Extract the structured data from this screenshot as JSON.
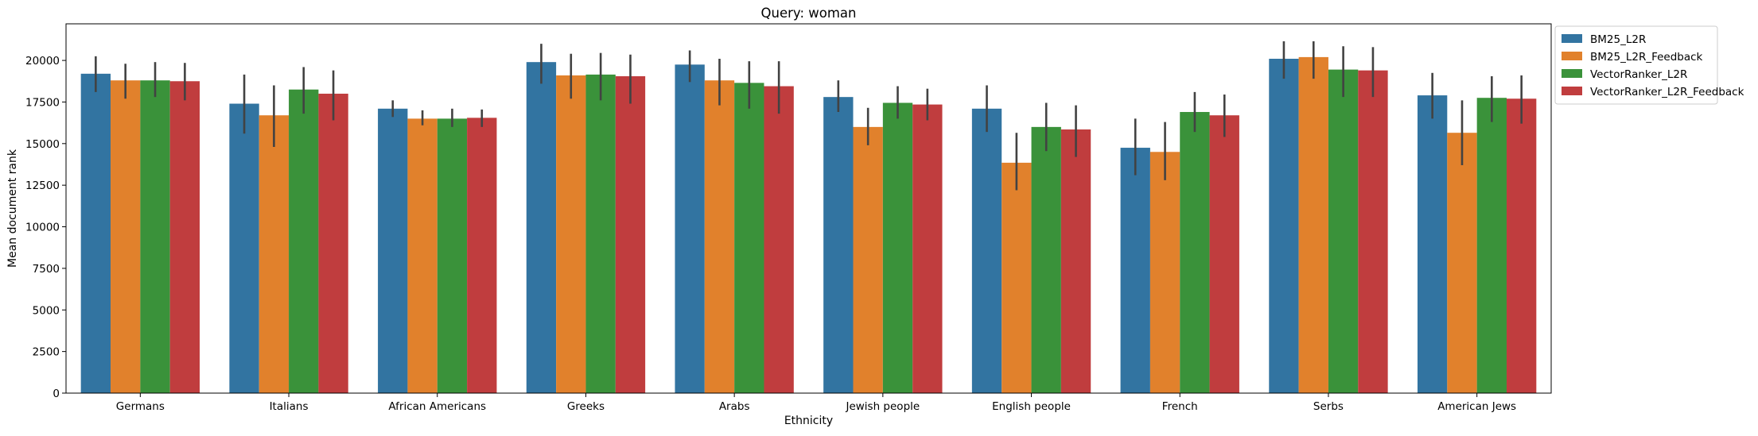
{
  "chart_data": {
    "type": "bar",
    "title": "Query: woman",
    "xlabel": "Ethnicity",
    "ylabel": "Mean document rank",
    "ylim": [
      0,
      22200
    ],
    "yticks": [
      0,
      2500,
      5000,
      7500,
      10000,
      12500,
      15000,
      17500,
      20000
    ],
    "grid": false,
    "legend_position": "outside top-right",
    "categories": [
      "Germans",
      "Italians",
      "African Americans",
      "Greeks",
      "Arabs",
      "Jewish people",
      "English people",
      "French",
      "Serbs",
      "American Jews"
    ],
    "series": [
      {
        "name": "BM25_L2R",
        "color": "#3274a1",
        "values": [
          19200,
          17400,
          17100,
          19900,
          19750,
          17800,
          17100,
          14750,
          20100,
          17900
        ],
        "error_low": [
          18100,
          15600,
          16600,
          18600,
          18700,
          16900,
          15700,
          13100,
          18900,
          16500
        ],
        "error_high": [
          20250,
          19150,
          17600,
          21000,
          20600,
          18800,
          18500,
          16500,
          21150,
          19250
        ]
      },
      {
        "name": "BM25_L2R_Feedback",
        "color": "#e1812c",
        "values": [
          18800,
          16700,
          16500,
          19100,
          18800,
          16000,
          13850,
          14500,
          20200,
          15650
        ],
        "error_low": [
          17700,
          14800,
          16100,
          17700,
          17300,
          14900,
          12200,
          12800,
          18900,
          13700
        ],
        "error_high": [
          19800,
          18500,
          17000,
          20400,
          20100,
          17150,
          15650,
          16300,
          21150,
          17600
        ]
      },
      {
        "name": "VectorRanker_L2R",
        "color": "#3a923a",
        "values": [
          18800,
          18250,
          16500,
          19150,
          18650,
          17450,
          16000,
          16900,
          19450,
          17750
        ],
        "error_low": [
          17800,
          16800,
          16000,
          17600,
          17100,
          16500,
          14550,
          15700,
          17800,
          16300
        ],
        "error_high": [
          19900,
          19600,
          17100,
          20450,
          19950,
          18450,
          17450,
          18100,
          20850,
          19050
        ]
      },
      {
        "name": "VectorRanker_L2R_Feedback",
        "color": "#c03d3e",
        "values": [
          18750,
          18000,
          16550,
          19050,
          18450,
          17350,
          15850,
          16700,
          19400,
          17700
        ],
        "error_low": [
          17600,
          16400,
          16000,
          17400,
          16800,
          16400,
          14200,
          15400,
          17800,
          16200
        ],
        "error_high": [
          19850,
          19400,
          17050,
          20350,
          19950,
          18300,
          17300,
          17950,
          20800,
          19100
        ]
      }
    ]
  }
}
